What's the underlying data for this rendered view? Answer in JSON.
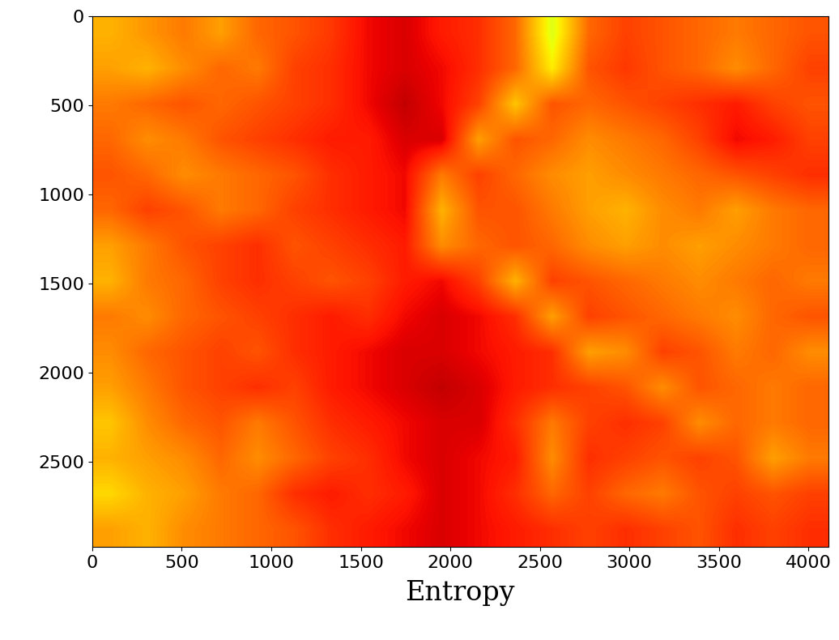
{
  "chart_data": {
    "type": "heatmap",
    "xlabel": "Entropy",
    "xlim": [
      0,
      4110
    ],
    "ylim": [
      2980,
      0
    ],
    "xticks": [
      0,
      500,
      1000,
      1500,
      2000,
      2500,
      3000,
      3500,
      4000
    ],
    "yticks": [
      0,
      500,
      1000,
      1500,
      2000,
      2500
    ],
    "color_range": [
      0,
      1
    ],
    "cells": [
      [
        0.72,
        0.75,
        0.78,
        0.74,
        0.8,
        0.82,
        0.85,
        0.9,
        0.92,
        0.88,
        0.86,
        0.8,
        0.62,
        0.8,
        0.84,
        0.82,
        0.8,
        0.78,
        0.8,
        0.82
      ],
      [
        0.74,
        0.72,
        0.76,
        0.8,
        0.78,
        0.84,
        0.86,
        0.9,
        0.92,
        0.9,
        0.86,
        0.8,
        0.66,
        0.82,
        0.85,
        0.82,
        0.8,
        0.76,
        0.8,
        0.84
      ],
      [
        0.78,
        0.8,
        0.82,
        0.8,
        0.82,
        0.84,
        0.86,
        0.9,
        0.94,
        0.9,
        0.84,
        0.7,
        0.82,
        0.8,
        0.82,
        0.84,
        0.86,
        0.88,
        0.84,
        0.82
      ],
      [
        0.8,
        0.76,
        0.78,
        0.82,
        0.84,
        0.86,
        0.88,
        0.88,
        0.92,
        0.92,
        0.74,
        0.82,
        0.8,
        0.76,
        0.78,
        0.8,
        0.84,
        0.9,
        0.88,
        0.84
      ],
      [
        0.82,
        0.8,
        0.76,
        0.78,
        0.8,
        0.82,
        0.86,
        0.88,
        0.9,
        0.78,
        0.84,
        0.8,
        0.76,
        0.74,
        0.76,
        0.78,
        0.8,
        0.82,
        0.84,
        0.86
      ],
      [
        0.8,
        0.84,
        0.82,
        0.78,
        0.8,
        0.84,
        0.86,
        0.88,
        0.9,
        0.72,
        0.82,
        0.82,
        0.78,
        0.74,
        0.72,
        0.76,
        0.78,
        0.74,
        0.78,
        0.8
      ],
      [
        0.74,
        0.78,
        0.82,
        0.84,
        0.86,
        0.82,
        0.84,
        0.86,
        0.88,
        0.76,
        0.8,
        0.82,
        0.8,
        0.76,
        0.74,
        0.76,
        0.74,
        0.76,
        0.78,
        0.8
      ],
      [
        0.72,
        0.78,
        0.8,
        0.84,
        0.86,
        0.84,
        0.82,
        0.84,
        0.88,
        0.9,
        0.84,
        0.72,
        0.84,
        0.82,
        0.8,
        0.78,
        0.76,
        0.78,
        0.8,
        0.78
      ],
      [
        0.78,
        0.76,
        0.8,
        0.82,
        0.84,
        0.86,
        0.88,
        0.86,
        0.9,
        0.92,
        0.9,
        0.86,
        0.74,
        0.84,
        0.82,
        0.8,
        0.78,
        0.76,
        0.8,
        0.82
      ],
      [
        0.76,
        0.8,
        0.82,
        0.84,
        0.82,
        0.86,
        0.88,
        0.9,
        0.92,
        0.92,
        0.9,
        0.88,
        0.86,
        0.74,
        0.76,
        0.84,
        0.82,
        0.78,
        0.8,
        0.76
      ],
      [
        0.74,
        0.78,
        0.82,
        0.84,
        0.86,
        0.84,
        0.88,
        0.9,
        0.92,
        0.94,
        0.92,
        0.88,
        0.86,
        0.84,
        0.82,
        0.76,
        0.82,
        0.8,
        0.78,
        0.8
      ],
      [
        0.7,
        0.76,
        0.8,
        0.82,
        0.78,
        0.82,
        0.86,
        0.88,
        0.9,
        0.92,
        0.92,
        0.86,
        0.78,
        0.84,
        0.86,
        0.84,
        0.76,
        0.8,
        0.78,
        0.8
      ],
      [
        0.72,
        0.74,
        0.76,
        0.8,
        0.76,
        0.8,
        0.84,
        0.86,
        0.9,
        0.92,
        0.9,
        0.88,
        0.76,
        0.86,
        0.84,
        0.82,
        0.84,
        0.82,
        0.74,
        0.78
      ],
      [
        0.68,
        0.72,
        0.74,
        0.78,
        0.8,
        0.86,
        0.88,
        0.86,
        0.88,
        0.92,
        0.9,
        0.86,
        0.8,
        0.84,
        0.8,
        0.78,
        0.82,
        0.84,
        0.82,
        0.84
      ],
      [
        0.74,
        0.72,
        0.76,
        0.78,
        0.8,
        0.82,
        0.86,
        0.88,
        0.9,
        0.92,
        0.9,
        0.88,
        0.86,
        0.84,
        0.86,
        0.84,
        0.82,
        0.86,
        0.84,
        0.86
      ]
    ]
  }
}
